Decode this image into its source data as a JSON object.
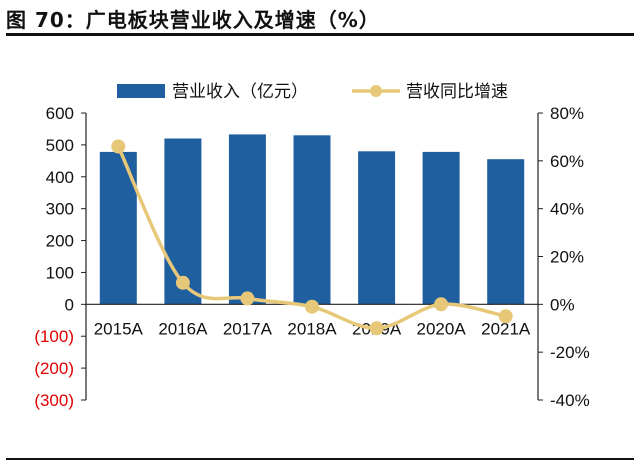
{
  "figure_title": "图 70：广电板块营业收入及增速（%）",
  "colors": {
    "bar": "#1F5FA0",
    "line": "#E6C878",
    "axis": "#222222",
    "negative_tick": "#E00000",
    "text": "#111111"
  },
  "chart_data": {
    "type": "bar+line",
    "categories": [
      "2015A",
      "2016A",
      "2017A",
      "2018A",
      "2019A",
      "2020A",
      "2021A"
    ],
    "series": [
      {
        "name": "营业收入（亿元）",
        "type": "bar",
        "axis": "left",
        "values": [
          478,
          520,
          533,
          530,
          480,
          478,
          455
        ]
      },
      {
        "name": "营收同比增速",
        "type": "line",
        "axis": "right",
        "values": [
          66,
          9,
          2.5,
          -1,
          -10,
          0,
          -5
        ]
      }
    ],
    "y_left": {
      "min": -300,
      "max": 600,
      "ticks": [
        600,
        500,
        400,
        300,
        200,
        100,
        0,
        -100,
        -200,
        -300
      ],
      "tick_labels": [
        "600",
        "500",
        "400",
        "300",
        "200",
        "100",
        "0",
        "(100)",
        "(200)",
        "(300)"
      ]
    },
    "y_right": {
      "min": -40,
      "max": 80,
      "ticks": [
        80,
        60,
        40,
        20,
        0,
        -20,
        -40
      ],
      "tick_labels": [
        "80%",
        "60%",
        "40%",
        "20%",
        "0%",
        "-20%",
        "-40%"
      ]
    },
    "legend_position": "top",
    "grid": false
  }
}
